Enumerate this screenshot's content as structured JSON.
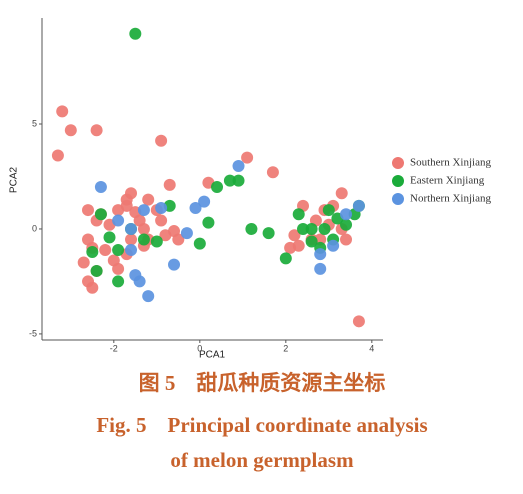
{
  "chart_data": {
    "type": "scatter",
    "x_label": "PCA1",
    "y_label": "PCA2",
    "xlim": [
      -3.67,
      4.26
    ],
    "ylim": [
      -5.29,
      10.05
    ],
    "xticks": [
      -2,
      0,
      2,
      4
    ],
    "yticks": [
      -5,
      0,
      5
    ],
    "grid": false,
    "legend": "right",
    "caption": [
      "图 5　甜瓜种质资源主坐标",
      "Fig. 5　Principal coordinate analysis",
      "of melon germplasm"
    ],
    "series": [
      {
        "name": "Southern Xinjiang",
        "color": "#ee7872",
        "x": [
          -3.2,
          -3.0,
          -2.4,
          -3.3,
          -0.9,
          1.1,
          1.7,
          0.2,
          -0.7,
          -1.6,
          -1.7,
          -2.6,
          -2.4,
          -2.3,
          -2.6,
          -2.5,
          -2.7,
          -2.4,
          -2.6,
          -2.5,
          -2.1,
          -1.9,
          -1.7,
          -1.5,
          -1.4,
          -1.3,
          -1.2,
          -1.0,
          -0.9,
          -0.8,
          -1.6,
          -1.7,
          -1.9,
          -2.0,
          -2.2,
          -1.3,
          -1.2,
          -0.6,
          -0.5,
          3.7,
          3.3,
          3.1,
          2.9,
          3.0,
          2.7,
          2.6,
          2.3,
          2.1,
          2.2,
          2.4,
          2.8,
          3.3,
          3.4
        ],
        "values": [
          5.6,
          4.7,
          4.7,
          3.5,
          4.2,
          3.4,
          2.7,
          2.2,
          2.1,
          1.7,
          1.4,
          0.9,
          0.4,
          0.7,
          -0.5,
          -0.9,
          -1.6,
          -2.0,
          -2.5,
          -2.8,
          0.2,
          0.9,
          1.1,
          0.8,
          0.4,
          0.0,
          -0.5,
          0.9,
          0.4,
          -0.3,
          -0.5,
          -1.2,
          -1.9,
          -1.5,
          -1.0,
          -0.8,
          1.4,
          -0.1,
          -0.5,
          -4.4,
          1.7,
          1.1,
          0.9,
          0.2,
          0.4,
          -0.5,
          -0.8,
          -0.9,
          -0.3,
          1.1,
          -0.5,
          0.0,
          -0.5
        ]
      },
      {
        "name": "Eastern Xinjiang",
        "color": "#1aab3a",
        "x": [
          -1.5,
          0.9,
          0.7,
          0.4,
          1.2,
          1.6,
          0.2,
          0.0,
          -0.7,
          -1.0,
          -1.3,
          -2.3,
          -2.1,
          -2.5,
          -2.4,
          -1.9,
          -1.9,
          -1.6,
          2.0,
          2.3,
          2.4,
          2.6,
          2.8,
          3.0,
          3.2,
          3.4,
          3.7,
          3.6,
          2.9,
          3.1,
          2.6
        ],
        "values": [
          9.3,
          2.3,
          2.3,
          2.0,
          0.0,
          -0.2,
          0.3,
          -0.7,
          1.1,
          -0.6,
          -0.5,
          0.7,
          -0.4,
          -1.1,
          -2.0,
          -2.5,
          -1.0,
          0.0,
          -1.4,
          0.7,
          0.0,
          -0.6,
          -0.9,
          0.9,
          0.5,
          0.2,
          1.1,
          0.7,
          0.0,
          -0.5,
          0.0
        ]
      },
      {
        "name": "Northern Xinjiang",
        "color": "#5b93e0",
        "x": [
          -2.3,
          0.9,
          -0.1,
          0.1,
          -0.3,
          -0.6,
          -1.2,
          -1.4,
          -1.5,
          -1.3,
          -1.6,
          -1.9,
          -0.9,
          2.8,
          2.8,
          3.1,
          3.7,
          3.4,
          -1.6
        ],
        "values": [
          2.0,
          3.0,
          1.0,
          1.3,
          -0.2,
          -1.7,
          -3.2,
          -2.5,
          -2.2,
          0.9,
          0.0,
          0.4,
          1.0,
          -1.9,
          -1.2,
          -0.8,
          1.1,
          0.7,
          -1.0
        ]
      }
    ]
  }
}
